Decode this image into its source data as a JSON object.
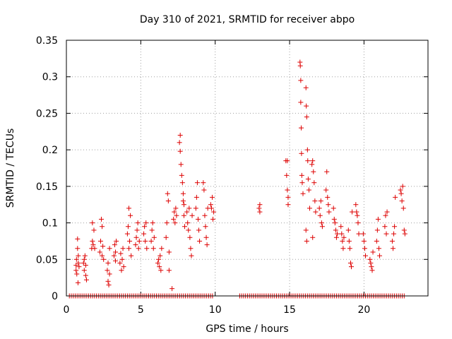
{
  "chart_data": {
    "type": "scatter",
    "title": "Day 310 of 2021, SRMTID for receiver abpo",
    "xlabel": "GPS time / hours",
    "ylabel": "SRMTID / TECUs",
    "xlim": [
      0,
      24.3
    ],
    "ylim": [
      0,
      0.35
    ],
    "xticks": [
      0,
      5,
      10,
      15,
      20
    ],
    "xtick_labels": [
      "0",
      "5",
      "10",
      "15",
      "20"
    ],
    "yticks": [
      0,
      0.05,
      0.1,
      0.15,
      0.2,
      0.25,
      0.3,
      0.35
    ],
    "ytick_labels": [
      "0",
      "0.05",
      "0.1",
      "0.15",
      "0.2",
      "0.25",
      "0.3",
      "0.35"
    ],
    "grid": true,
    "marker": "plus",
    "color": "#dd0000",
    "zero_runs": [
      [
        0.2,
        9.9
      ],
      [
        11.65,
        22.8
      ]
    ],
    "zero_step": 0.13,
    "series": [
      {
        "name": "SRMTID",
        "points": [
          [
            0.65,
            0.035
          ],
          [
            0.65,
            0.042
          ],
          [
            0.68,
            0.05
          ],
          [
            0.7,
            0.03
          ],
          [
            0.75,
            0.065
          ],
          [
            0.75,
            0.078
          ],
          [
            0.78,
            0.018
          ],
          [
            0.8,
            0.045
          ],
          [
            0.8,
            0.055
          ],
          [
            0.85,
            0.04
          ],
          [
            1.15,
            0.045
          ],
          [
            1.2,
            0.05
          ],
          [
            1.2,
            0.035
          ],
          [
            1.25,
            0.055
          ],
          [
            1.3,
            0.028
          ],
          [
            1.3,
            0.042
          ],
          [
            1.35,
            0.022
          ],
          [
            1.7,
            0.065
          ],
          [
            1.75,
            0.075
          ],
          [
            1.75,
            0.1
          ],
          [
            1.8,
            0.07
          ],
          [
            1.85,
            0.09
          ],
          [
            1.9,
            0.065
          ],
          [
            2.25,
            0.06
          ],
          [
            2.3,
            0.075
          ],
          [
            2.35,
            0.105
          ],
          [
            2.4,
            0.095
          ],
          [
            2.4,
            0.055
          ],
          [
            2.45,
            0.068
          ],
          [
            2.5,
            0.05
          ],
          [
            2.75,
            0.035
          ],
          [
            2.8,
            0.045
          ],
          [
            2.8,
            0.02
          ],
          [
            2.85,
            0.015
          ],
          [
            2.9,
            0.065
          ],
          [
            2.9,
            0.03
          ],
          [
            3.2,
            0.055
          ],
          [
            3.25,
            0.07
          ],
          [
            3.3,
            0.048
          ],
          [
            3.3,
            0.06
          ],
          [
            3.35,
            0.075
          ],
          [
            3.6,
            0.045
          ],
          [
            3.65,
            0.058
          ],
          [
            3.7,
            0.035
          ],
          [
            3.75,
            0.05
          ],
          [
            3.8,
            0.065
          ],
          [
            3.85,
            0.04
          ],
          [
            4.1,
            0.085
          ],
          [
            4.15,
            0.095
          ],
          [
            4.2,
            0.12
          ],
          [
            4.2,
            0.065
          ],
          [
            4.25,
            0.075
          ],
          [
            4.3,
            0.11
          ],
          [
            4.35,
            0.055
          ],
          [
            4.65,
            0.07
          ],
          [
            4.7,
            0.08
          ],
          [
            4.75,
            0.09
          ],
          [
            4.8,
            0.1
          ],
          [
            4.85,
            0.065
          ],
          [
            4.9,
            0.075
          ],
          [
            5.2,
            0.085
          ],
          [
            5.25,
            0.095
          ],
          [
            5.3,
            0.075
          ],
          [
            5.35,
            0.1
          ],
          [
            5.4,
            0.065
          ],
          [
            5.7,
            0.075
          ],
          [
            5.75,
            0.09
          ],
          [
            5.8,
            0.1
          ],
          [
            5.85,
            0.065
          ],
          [
            5.9,
            0.08
          ],
          [
            6.15,
            0.045
          ],
          [
            6.2,
            0.05
          ],
          [
            6.25,
            0.04
          ],
          [
            6.3,
            0.055
          ],
          [
            6.35,
            0.035
          ],
          [
            6.4,
            0.065
          ],
          [
            6.7,
            0.08
          ],
          [
            6.75,
            0.1
          ],
          [
            6.8,
            0.14
          ],
          [
            6.85,
            0.13
          ],
          [
            6.9,
            0.06
          ],
          [
            6.9,
            0.035
          ],
          [
            7.1,
            0.01
          ],
          [
            7.2,
            0.105
          ],
          [
            7.25,
            0.115
          ],
          [
            7.3,
            0.1
          ],
          [
            7.35,
            0.12
          ],
          [
            7.4,
            0.11
          ],
          [
            7.6,
            0.21
          ],
          [
            7.65,
            0.22
          ],
          [
            7.65,
            0.198
          ],
          [
            7.7,
            0.18
          ],
          [
            7.75,
            0.165
          ],
          [
            7.8,
            0.155
          ],
          [
            7.85,
            0.14
          ],
          [
            7.85,
            0.13
          ],
          [
            7.9,
            0.125
          ],
          [
            7.9,
            0.11
          ],
          [
            7.95,
            0.095
          ],
          [
            8.1,
            0.115
          ],
          [
            8.15,
            0.1
          ],
          [
            8.2,
            0.09
          ],
          [
            8.25,
            0.12
          ],
          [
            8.3,
            0.08
          ],
          [
            8.35,
            0.065
          ],
          [
            8.4,
            0.055
          ],
          [
            8.45,
            0.11
          ],
          [
            8.7,
            0.12
          ],
          [
            8.75,
            0.135
          ],
          [
            8.8,
            0.155
          ],
          [
            8.85,
            0.105
          ],
          [
            8.9,
            0.09
          ],
          [
            8.95,
            0.075
          ],
          [
            9.2,
            0.155
          ],
          [
            9.25,
            0.145
          ],
          [
            9.3,
            0.11
          ],
          [
            9.35,
            0.095
          ],
          [
            9.4,
            0.08
          ],
          [
            9.45,
            0.07
          ],
          [
            9.5,
            0.12
          ],
          [
            9.7,
            0.125
          ],
          [
            9.75,
            0.12
          ],
          [
            9.8,
            0.135
          ],
          [
            9.85,
            0.105
          ],
          [
            9.9,
            0.115
          ],
          [
            12.95,
            0.12
          ],
          [
            13.0,
            0.115
          ],
          [
            13.0,
            0.125
          ],
          [
            14.75,
            0.185
          ],
          [
            14.8,
            0.165
          ],
          [
            14.85,
            0.185
          ],
          [
            14.85,
            0.145
          ],
          [
            14.9,
            0.135
          ],
          [
            14.9,
            0.125
          ],
          [
            15.7,
            0.32
          ],
          [
            15.72,
            0.315
          ],
          [
            15.75,
            0.295
          ],
          [
            15.75,
            0.265
          ],
          [
            15.78,
            0.23
          ],
          [
            15.8,
            0.195
          ],
          [
            15.82,
            0.165
          ],
          [
            15.85,
            0.155
          ],
          [
            15.9,
            0.14
          ],
          [
            16.1,
            0.285
          ],
          [
            16.12,
            0.26
          ],
          [
            16.15,
            0.245
          ],
          [
            16.2,
            0.2
          ],
          [
            16.22,
            0.185
          ],
          [
            16.25,
            0.16
          ],
          [
            16.3,
            0.145
          ],
          [
            16.35,
            0.12
          ],
          [
            16.1,
            0.09
          ],
          [
            16.15,
            0.075
          ],
          [
            16.5,
            0.18
          ],
          [
            16.55,
            0.185
          ],
          [
            16.6,
            0.17
          ],
          [
            16.65,
            0.155
          ],
          [
            16.7,
            0.13
          ],
          [
            16.75,
            0.115
          ],
          [
            16.55,
            0.08
          ],
          [
            17.0,
            0.12
          ],
          [
            17.05,
            0.11
          ],
          [
            17.1,
            0.13
          ],
          [
            17.15,
            0.1
          ],
          [
            17.2,
            0.095
          ],
          [
            17.45,
            0.145
          ],
          [
            17.5,
            0.17
          ],
          [
            17.55,
            0.135
          ],
          [
            17.6,
            0.125
          ],
          [
            17.65,
            0.115
          ],
          [
            17.95,
            0.12
          ],
          [
            18.0,
            0.105
          ],
          [
            18.05,
            0.1
          ],
          [
            18.1,
            0.09
          ],
          [
            18.15,
            0.08
          ],
          [
            18.2,
            0.085
          ],
          [
            18.45,
            0.095
          ],
          [
            18.5,
            0.085
          ],
          [
            18.55,
            0.075
          ],
          [
            18.6,
            0.065
          ],
          [
            18.65,
            0.08
          ],
          [
            18.95,
            0.09
          ],
          [
            19.0,
            0.075
          ],
          [
            19.05,
            0.065
          ],
          [
            19.1,
            0.045
          ],
          [
            19.15,
            0.04
          ],
          [
            19.2,
            0.115
          ],
          [
            19.45,
            0.125
          ],
          [
            19.5,
            0.115
          ],
          [
            19.55,
            0.11
          ],
          [
            19.6,
            0.1
          ],
          [
            19.65,
            0.085
          ],
          [
            19.95,
            0.085
          ],
          [
            20.0,
            0.075
          ],
          [
            20.05,
            0.065
          ],
          [
            20.1,
            0.055
          ],
          [
            20.4,
            0.05
          ],
          [
            20.45,
            0.045
          ],
          [
            20.5,
            0.04
          ],
          [
            20.55,
            0.035
          ],
          [
            20.6,
            0.06
          ],
          [
            20.85,
            0.075
          ],
          [
            20.9,
            0.09
          ],
          [
            20.95,
            0.105
          ],
          [
            21.0,
            0.065
          ],
          [
            21.05,
            0.055
          ],
          [
            21.4,
            0.095
          ],
          [
            21.45,
            0.11
          ],
          [
            21.5,
            0.085
          ],
          [
            21.55,
            0.115
          ],
          [
            21.9,
            0.075
          ],
          [
            21.95,
            0.065
          ],
          [
            22.0,
            0.085
          ],
          [
            22.05,
            0.095
          ],
          [
            22.1,
            0.135
          ],
          [
            22.45,
            0.145
          ],
          [
            22.5,
            0.14
          ],
          [
            22.55,
            0.13
          ],
          [
            22.6,
            0.15
          ],
          [
            22.65,
            0.12
          ],
          [
            22.7,
            0.09
          ],
          [
            22.75,
            0.085
          ]
        ]
      }
    ]
  }
}
